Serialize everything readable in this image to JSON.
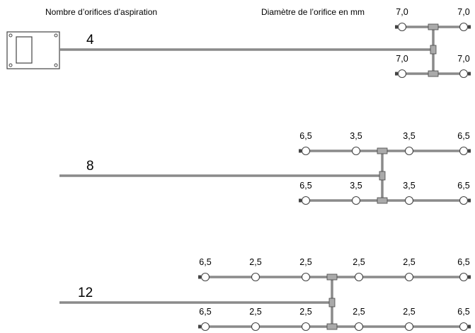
{
  "headers": {
    "hole_count": "Nombre d’orifices d’aspiration",
    "hole_diameter": "Diamètre de l’orifice en mm"
  },
  "colors": {
    "pipe": "#8a8a8a",
    "outline": "#444444",
    "background": "#ffffff"
  },
  "icons": {
    "detector": "detector-unit-icon",
    "hole": "sampling-hole-icon",
    "tee": "tee-fitting-icon",
    "end_cap": "end-cap-icon"
  },
  "configs": [
    {
      "count": "4",
      "rows": [
        {
          "holes": [
            "7,0",
            "7,0"
          ]
        },
        {
          "holes": [
            "7,0",
            "7,0"
          ]
        }
      ]
    },
    {
      "count": "8",
      "rows": [
        {
          "holes": [
            "6,5",
            "3,5",
            "3,5",
            "6,5"
          ]
        },
        {
          "holes": [
            "6,5",
            "3,5",
            "3,5",
            "6,5"
          ]
        }
      ]
    },
    {
      "count": "12",
      "rows": [
        {
          "holes": [
            "6,5",
            "2,5",
            "2,5",
            "2,5",
            "2,5",
            "6,5"
          ]
        },
        {
          "holes": [
            "6,5",
            "2,5",
            "2,5",
            "2,5",
            "2,5",
            "6,5"
          ]
        }
      ]
    }
  ]
}
